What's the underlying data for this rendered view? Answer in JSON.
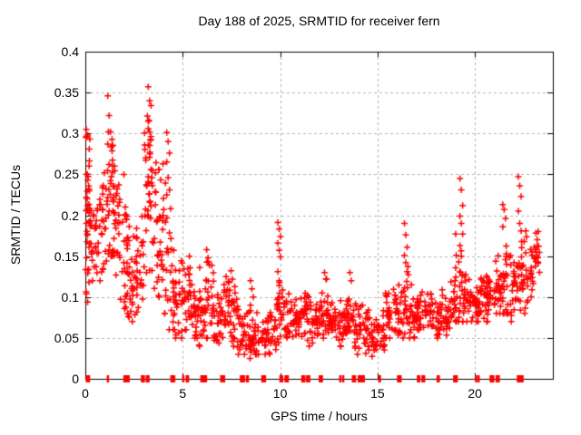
{
  "chart_data": {
    "type": "scatter",
    "title": "Day 188 of 2025, SRMTID for receiver fern",
    "xlabel": "GPS time / hours",
    "ylabel": "SRMTID / TECUs",
    "xlim": [
      0,
      24
    ],
    "ylim": [
      0,
      0.4
    ],
    "xticks": [
      0,
      5,
      10,
      15,
      20
    ],
    "xtick_labels": [
      "0",
      "5",
      "10",
      "15",
      "20"
    ],
    "yticks": [
      0,
      0.05,
      0.1,
      0.15,
      0.2,
      0.25,
      0.3,
      0.35,
      0.4
    ],
    "ytick_labels": [
      "0",
      "0.05",
      "0.1",
      "0.15",
      "0.2",
      "0.25",
      "0.3",
      "0.35",
      "0.4"
    ],
    "grid": true,
    "legend": "none",
    "marker": {
      "shape": "plus",
      "size": 7,
      "color": "#ff0000"
    },
    "series": [
      {
        "name": "srmtid-points",
        "style": "points-plus",
        "color": "#ff0000",
        "seed": 188,
        "columns_per_bin": 5,
        "density_bins": [
          [
            0.0,
            0.3,
            30,
            0.09,
            0.31,
            0.21
          ],
          [
            0.3,
            0.7,
            22,
            0.12,
            0.23,
            0.17
          ],
          [
            0.7,
            1.1,
            25,
            0.12,
            0.26,
            0.19
          ],
          [
            1.1,
            1.45,
            30,
            0.13,
            0.33,
            0.22
          ],
          [
            1.45,
            1.8,
            28,
            0.12,
            0.26,
            0.2
          ],
          [
            1.8,
            2.2,
            28,
            0.08,
            0.24,
            0.15
          ],
          [
            2.2,
            2.6,
            24,
            0.07,
            0.21,
            0.12
          ],
          [
            2.6,
            3.0,
            26,
            0.08,
            0.22,
            0.14
          ],
          [
            3.0,
            3.4,
            30,
            0.13,
            0.34,
            0.22
          ],
          [
            3.4,
            3.8,
            26,
            0.1,
            0.3,
            0.18
          ],
          [
            3.8,
            4.2,
            26,
            0.08,
            0.29,
            0.15
          ],
          [
            4.2,
            4.6,
            24,
            0.06,
            0.26,
            0.12
          ],
          [
            4.6,
            5.0,
            24,
            0.05,
            0.17,
            0.1
          ],
          [
            5.0,
            5.4,
            26,
            0.06,
            0.17,
            0.1
          ],
          [
            5.4,
            5.8,
            26,
            0.05,
            0.13,
            0.08
          ],
          [
            5.8,
            6.2,
            26,
            0.04,
            0.15,
            0.08
          ],
          [
            6.2,
            6.6,
            24,
            0.05,
            0.16,
            0.09
          ],
          [
            6.6,
            7.0,
            24,
            0.04,
            0.12,
            0.07
          ],
          [
            7.0,
            7.4,
            24,
            0.05,
            0.14,
            0.08
          ],
          [
            7.4,
            7.8,
            22,
            0.04,
            0.13,
            0.075
          ],
          [
            7.8,
            8.2,
            24,
            0.03,
            0.1,
            0.06
          ],
          [
            8.2,
            8.6,
            24,
            0.025,
            0.1,
            0.05
          ],
          [
            8.6,
            9.0,
            22,
            0.03,
            0.09,
            0.05
          ],
          [
            9.0,
            9.4,
            22,
            0.03,
            0.08,
            0.05
          ],
          [
            9.4,
            9.8,
            20,
            0.02,
            0.1,
            0.05
          ],
          [
            9.8,
            10.2,
            24,
            0.04,
            0.15,
            0.07
          ],
          [
            10.2,
            10.6,
            24,
            0.04,
            0.12,
            0.07
          ],
          [
            10.6,
            11.0,
            22,
            0.05,
            0.1,
            0.07
          ],
          [
            11.0,
            11.4,
            24,
            0.05,
            0.11,
            0.08
          ],
          [
            11.4,
            11.8,
            22,
            0.04,
            0.1,
            0.07
          ],
          [
            11.8,
            12.2,
            24,
            0.05,
            0.12,
            0.08
          ],
          [
            12.2,
            12.6,
            24,
            0.05,
            0.13,
            0.08
          ],
          [
            12.6,
            13.0,
            22,
            0.05,
            0.1,
            0.07
          ],
          [
            13.0,
            13.4,
            24,
            0.04,
            0.12,
            0.07
          ],
          [
            13.4,
            13.8,
            24,
            0.05,
            0.13,
            0.08
          ],
          [
            13.8,
            14.2,
            24,
            0.03,
            0.11,
            0.06
          ],
          [
            14.2,
            14.6,
            22,
            0.025,
            0.09,
            0.06
          ],
          [
            14.6,
            15.0,
            20,
            0.025,
            0.08,
            0.05
          ],
          [
            15.0,
            15.4,
            20,
            0.025,
            0.09,
            0.06
          ],
          [
            15.4,
            15.8,
            22,
            0.05,
            0.12,
            0.08
          ],
          [
            15.8,
            16.2,
            24,
            0.05,
            0.13,
            0.08
          ],
          [
            16.2,
            16.6,
            24,
            0.05,
            0.17,
            0.09
          ],
          [
            16.6,
            17.0,
            24,
            0.05,
            0.13,
            0.08
          ],
          [
            17.0,
            17.4,
            24,
            0.06,
            0.12,
            0.08
          ],
          [
            17.4,
            17.8,
            22,
            0.05,
            0.11,
            0.08
          ],
          [
            17.8,
            18.2,
            22,
            0.05,
            0.1,
            0.07
          ],
          [
            18.2,
            18.6,
            22,
            0.05,
            0.11,
            0.08
          ],
          [
            18.6,
            19.0,
            22,
            0.06,
            0.12,
            0.09
          ],
          [
            19.0,
            19.4,
            26,
            0.07,
            0.2,
            0.11
          ],
          [
            19.4,
            19.8,
            24,
            0.07,
            0.14,
            0.1
          ],
          [
            19.8,
            20.2,
            24,
            0.07,
            0.12,
            0.09
          ],
          [
            20.2,
            20.6,
            24,
            0.07,
            0.13,
            0.1
          ],
          [
            20.6,
            21.0,
            24,
            0.07,
            0.14,
            0.1
          ],
          [
            21.0,
            21.4,
            24,
            0.08,
            0.17,
            0.11
          ],
          [
            21.4,
            21.8,
            24,
            0.08,
            0.19,
            0.12
          ],
          [
            21.8,
            22.2,
            24,
            0.07,
            0.16,
            0.11
          ],
          [
            22.2,
            22.6,
            26,
            0.08,
            0.22,
            0.13
          ],
          [
            22.6,
            23.0,
            24,
            0.09,
            0.19,
            0.13
          ],
          [
            23.0,
            23.35,
            14,
            0.12,
            0.18,
            0.15
          ]
        ],
        "peak_columns": [
          {
            "x": 0.12,
            "ys": [
              0.305,
              0.298,
              0.26,
              0.25,
              0.243,
              0.232,
              0.222,
              0.212,
              0.203,
              0.19,
              0.176,
              0.161,
              0.148,
              0.133,
              0.118,
              0.104,
              0.094
            ]
          },
          {
            "x": 1.22,
            "ys": [
              0.346,
              0.322,
              0.302,
              0.287,
              0.262,
              0.242,
              0.222,
              0.205
            ]
          },
          {
            "x": 2.05,
            "ys": [
              0.25,
              0.21,
              0.195
            ]
          },
          {
            "x": 3.3,
            "ys": [
              0.357,
              0.34,
              0.334,
              0.315,
              0.302,
              0.296,
              0.286,
              0.271,
              0.256,
              0.241,
              0.226,
              0.211,
              0.198
            ]
          },
          {
            "x": 4.25,
            "ys": [
              0.301,
              0.29,
              0.276,
              0.265,
              0.246,
              0.231,
              0.225
            ]
          },
          {
            "x": 6.3,
            "ys": [
              0.158,
              0.148,
              0.139
            ]
          },
          {
            "x": 7.55,
            "ys": [
              0.132,
              0.122
            ]
          },
          {
            "x": 8.55,
            "ys": [
              0.12,
              0.11,
              0.1,
              0.09
            ]
          },
          {
            "x": 9.95,
            "ys": [
              0.191,
              0.183,
              0.174,
              0.166,
              0.157,
              0.149,
              0.131,
              0.12
            ]
          },
          {
            "x": 12.35,
            "ys": [
              0.13,
              0.122
            ]
          },
          {
            "x": 13.65,
            "ys": [
              0.13,
              0.12
            ]
          },
          {
            "x": 16.45,
            "ys": [
              0.19,
              0.176,
              0.161,
              0.151,
              0.142,
              0.131
            ]
          },
          {
            "x": 19.3,
            "ys": [
              0.245,
              0.231,
              0.212,
              0.199,
              0.19,
              0.177,
              0.163,
              0.15
            ]
          },
          {
            "x": 21.5,
            "ys": [
              0.213,
              0.207,
              0.196,
              0.186
            ]
          },
          {
            "x": 22.3,
            "ys": [
              0.247,
              0.236,
              0.223,
              0.205,
              0.19,
              0.181
            ]
          },
          {
            "x": 23.2,
            "ys": [
              0.178,
              0.17,
              0.162,
              0.155
            ]
          }
        ]
      },
      {
        "name": "flag-squares-at-zero",
        "style": "filled-squares-at-zero",
        "color": "#ff0000",
        "segments": [
          [
            0.02,
            0.1
          ],
          [
            0.13,
            0.2
          ],
          [
            1.1,
            1.2
          ],
          [
            1.95,
            2.28
          ],
          [
            2.85,
            3.06
          ],
          [
            3.1,
            3.3
          ],
          [
            4.36,
            4.62
          ],
          [
            4.97,
            5.07
          ],
          [
            5.15,
            5.33
          ],
          [
            5.9,
            6.25
          ],
          [
            6.92,
            7.18
          ],
          [
            7.93,
            8.2
          ],
          [
            8.24,
            8.4
          ],
          [
            9.03,
            9.28
          ],
          [
            9.96,
            10.16
          ],
          [
            10.22,
            10.45
          ],
          [
            11.08,
            11.3
          ],
          [
            11.33,
            11.55
          ],
          [
            11.98,
            12.2
          ],
          [
            13.03,
            13.1
          ],
          [
            13.18,
            13.28
          ],
          [
            13.68,
            13.9
          ],
          [
            13.98,
            14.35
          ],
          [
            15.03,
            15.18
          ],
          [
            16.0,
            16.24
          ],
          [
            17.02,
            17.2
          ],
          [
            17.25,
            17.45
          ],
          [
            18.03,
            18.2
          ],
          [
            18.88,
            19.12
          ],
          [
            20.0,
            20.08
          ],
          [
            20.13,
            20.22
          ],
          [
            20.75,
            21.0
          ],
          [
            21.06,
            21.13
          ],
          [
            21.16,
            21.28
          ],
          [
            22.15,
            22.5
          ]
        ]
      }
    ]
  }
}
